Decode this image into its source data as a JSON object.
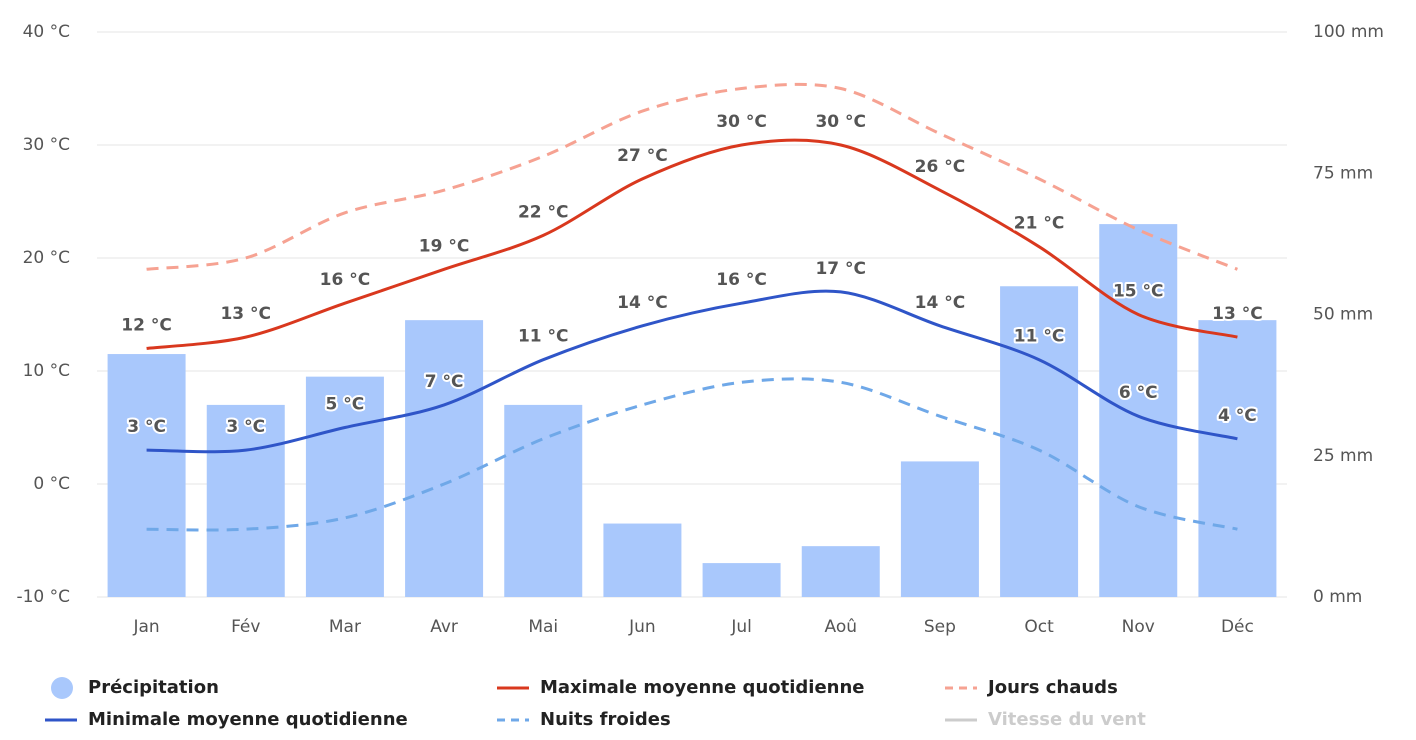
{
  "chart_data": {
    "type": "combo",
    "categories": [
      "Jan",
      "Fév",
      "Mar",
      "Avr",
      "Mai",
      "Jun",
      "Jul",
      "Aoû",
      "Sep",
      "Oct",
      "Nov",
      "Déc"
    ],
    "ylim": [
      -10,
      40
    ],
    "yticks": [
      {
        "value": -10,
        "label": "-10 °C"
      },
      {
        "value": 0,
        "label": "0 °C"
      },
      {
        "value": 10,
        "label": "10 °C"
      },
      {
        "value": 20,
        "label": "20 °C"
      },
      {
        "value": 30,
        "label": "30 °C"
      },
      {
        "value": 40,
        "label": "40 °C"
      }
    ],
    "y2lim": [
      0,
      100
    ],
    "y2ticks": [
      {
        "value": 0,
        "label": "0 mm"
      },
      {
        "value": 25,
        "label": "25 mm"
      },
      {
        "value": 50,
        "label": "50 mm"
      },
      {
        "value": 75,
        "label": "75 mm"
      },
      {
        "value": 100,
        "label": "100 mm"
      }
    ],
    "grid": true,
    "series": [
      {
        "name": "Précipitation",
        "type": "bar",
        "axis": "y2",
        "color": "#a9c8fc",
        "values": [
          43,
          34,
          39,
          49,
          34,
          13,
          6,
          9,
          24,
          55,
          66,
          49
        ]
      },
      {
        "name": "Maximale moyenne quotidienne",
        "type": "line",
        "color": "#d9381e",
        "values": [
          12,
          13,
          16,
          19,
          22,
          27,
          30,
          30,
          26,
          21,
          15,
          13
        ],
        "value_labels": [
          "12 °C",
          "13 °C",
          "16 °C",
          "19 °C",
          "22 °C",
          "27 °C",
          "30 °C",
          "30 °C",
          "26 °C",
          "21 °C",
          "15 °C",
          "13 °C"
        ],
        "label_color": "#8b2a0a"
      },
      {
        "name": "Jours chauds",
        "type": "line",
        "dashed": true,
        "color": "#f6a292",
        "values": [
          19,
          20,
          24,
          26,
          29,
          33,
          35,
          35,
          31,
          27,
          22.5,
          19
        ]
      },
      {
        "name": "Minimale moyenne quotidienne",
        "type": "line",
        "color": "#2f55c8",
        "values": [
          3,
          3,
          5,
          7,
          11,
          14,
          16,
          17,
          14,
          11,
          6,
          4
        ],
        "value_labels": [
          "3 °C",
          "3 °C",
          "5 °C",
          "7 °C",
          "11 °C",
          "14 °C",
          "16 °C",
          "17 °C",
          "14 °C",
          "11 °C",
          "6 °C",
          "4 °C"
        ],
        "label_color": "#2a45c0"
      },
      {
        "name": "Nuits froides",
        "type": "line",
        "dashed": true,
        "color": "#6fa8e8",
        "values": [
          -4,
          -4,
          -3,
          0,
          4,
          7,
          9,
          9,
          6,
          3,
          -2,
          -4
        ]
      }
    ],
    "hidden_series": [
      {
        "name": "Vitesse du vent",
        "color": "#cccccc"
      }
    ]
  }
}
